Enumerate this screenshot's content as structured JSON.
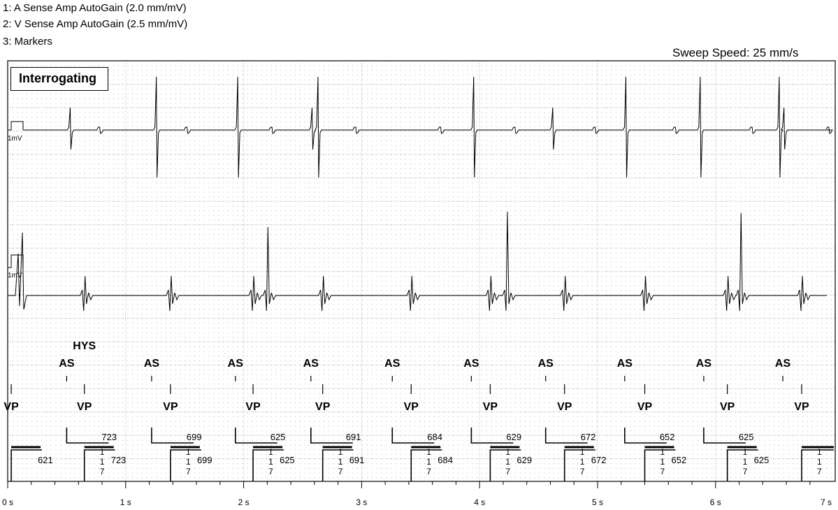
{
  "header": {
    "line1": "1: A Sense Amp AutoGain (2.0 mm/mV)",
    "line2": "2: V Sense Amp AutoGain (2.5 mm/mV)",
    "line3": "3: Markers",
    "sweep_speed": "Sweep Speed: 25 mm/s"
  },
  "status_badge": "Interrogating",
  "calibration_label": "1mV",
  "time_axis": [
    "0 s",
    "1 s",
    "2 s",
    "3 s",
    "4 s",
    "5 s",
    "6 s",
    "7 s"
  ],
  "colors": {
    "grid_dot": "#9a9a9a",
    "trace": "#000000",
    "background": "#ffffff"
  },
  "markers": {
    "atrial_label": "AS",
    "ventricular_label": "VP",
    "hysteresis_label": "HYS",
    "atrial_sense_times_s": [
      0.5,
      1.22,
      1.93,
      2.57,
      3.26,
      3.93,
      4.56,
      5.23,
      5.9,
      6.57
    ],
    "ventricular_pace_times_s": [
      0.03,
      0.65,
      1.38,
      2.08,
      2.67,
      3.42,
      4.09,
      4.72,
      5.4,
      6.1,
      6.73
    ],
    "ap_intervals_ms": [
      "723",
      "699",
      "625",
      "691",
      "684",
      "629",
      "672",
      "652",
      "625"
    ],
    "pp_intervals_ms": [
      "621",
      "723",
      "699",
      "625",
      "691",
      "684",
      "629",
      "672",
      "652",
      "625"
    ],
    "av_digits": [
      "1",
      "1",
      "7"
    ]
  }
}
